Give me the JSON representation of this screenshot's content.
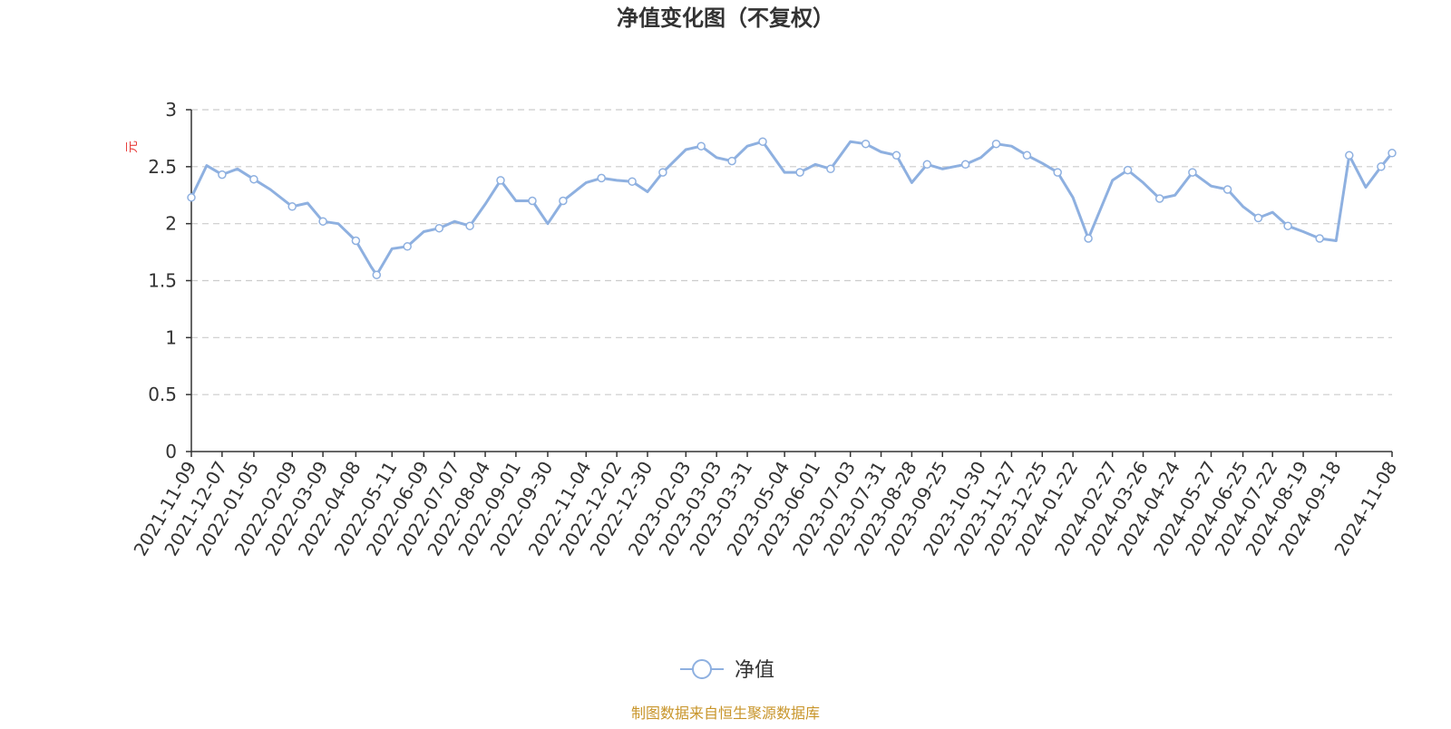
{
  "chart_data": {
    "type": "line",
    "title": "净值变化图（不复权）",
    "ylabel": "元",
    "xlabel": "",
    "ylim": [
      0,
      3
    ],
    "yticks": [
      "0",
      "0.5",
      "1",
      "1.5",
      "2",
      "2.5",
      "3"
    ],
    "grid": true,
    "legend_position": "bottom-center",
    "x_tick_labels": [
      "2021-11-09",
      "2021-12-07",
      "2022-01-05",
      "2022-02-09",
      "2022-03-09",
      "2022-04-08",
      "2022-05-11",
      "2022-06-09",
      "2022-07-07",
      "2022-08-04",
      "2022-09-01",
      "2022-09-30",
      "2022-11-04",
      "2022-12-02",
      "2022-12-30",
      "2023-02-03",
      "2023-03-03",
      "2023-03-31",
      "2023-05-04",
      "2023-06-01",
      "2023-07-03",
      "2023-07-31",
      "2023-08-28",
      "2023-09-25",
      "2023-10-30",
      "2023-11-27",
      "2023-12-25",
      "2024-01-22",
      "2024-02-27",
      "2024-03-26",
      "2024-04-24",
      "2024-05-27",
      "2024-06-25",
      "2024-07-22",
      "2024-08-19",
      "2024-09-18",
      "2024-11-08"
    ],
    "series": [
      {
        "name": "净值",
        "color": "#8eb0e0",
        "x": [
          "2021-11-09",
          "2021-11-23",
          "2021-12-07",
          "2021-12-21",
          "2022-01-05",
          "2022-01-20",
          "2022-02-09",
          "2022-02-23",
          "2022-03-09",
          "2022-03-23",
          "2022-04-08",
          "2022-04-22",
          "2022-04-27",
          "2022-05-11",
          "2022-05-25",
          "2022-06-09",
          "2022-06-23",
          "2022-07-07",
          "2022-07-21",
          "2022-08-04",
          "2022-08-18",
          "2022-09-01",
          "2022-09-16",
          "2022-09-30",
          "2022-10-14",
          "2022-11-04",
          "2022-11-18",
          "2022-12-02",
          "2022-12-16",
          "2022-12-30",
          "2023-01-13",
          "2023-02-03",
          "2023-02-17",
          "2023-03-03",
          "2023-03-17",
          "2023-03-31",
          "2023-04-14",
          "2023-05-04",
          "2023-05-18",
          "2023-06-01",
          "2023-06-15",
          "2023-07-03",
          "2023-07-17",
          "2023-07-31",
          "2023-08-14",
          "2023-08-28",
          "2023-09-11",
          "2023-09-25",
          "2023-10-16",
          "2023-10-30",
          "2023-11-13",
          "2023-11-27",
          "2023-12-11",
          "2023-12-25",
          "2024-01-08",
          "2024-01-22",
          "2024-02-05",
          "2024-02-27",
          "2024-03-12",
          "2024-03-26",
          "2024-04-10",
          "2024-04-24",
          "2024-05-10",
          "2024-05-27",
          "2024-06-11",
          "2024-06-25",
          "2024-07-09",
          "2024-07-22",
          "2024-08-05",
          "2024-08-19",
          "2024-09-03",
          "2024-09-18",
          "2024-09-30",
          "2024-10-15",
          "2024-10-29",
          "2024-11-08"
        ],
        "values": [
          2.23,
          2.51,
          2.43,
          2.48,
          2.39,
          2.3,
          2.15,
          2.18,
          2.02,
          2.0,
          1.85,
          1.62,
          1.55,
          1.78,
          1.8,
          1.93,
          1.96,
          2.02,
          1.98,
          2.17,
          2.38,
          2.2,
          2.2,
          2.0,
          2.2,
          2.36,
          2.4,
          2.38,
          2.37,
          2.28,
          2.45,
          2.65,
          2.68,
          2.58,
          2.55,
          2.68,
          2.72,
          2.45,
          2.45,
          2.52,
          2.48,
          2.72,
          2.7,
          2.63,
          2.6,
          2.36,
          2.52,
          2.48,
          2.52,
          2.58,
          2.7,
          2.68,
          2.6,
          2.53,
          2.45,
          2.23,
          1.87,
          2.38,
          2.47,
          2.36,
          2.22,
          2.25,
          2.45,
          2.33,
          2.3,
          2.15,
          2.05,
          2.1,
          1.98,
          1.93,
          1.87,
          1.85,
          2.6,
          2.32,
          2.5,
          2.62
        ]
      }
    ],
    "footer_note": "制图数据来自恒生聚源数据库"
  }
}
